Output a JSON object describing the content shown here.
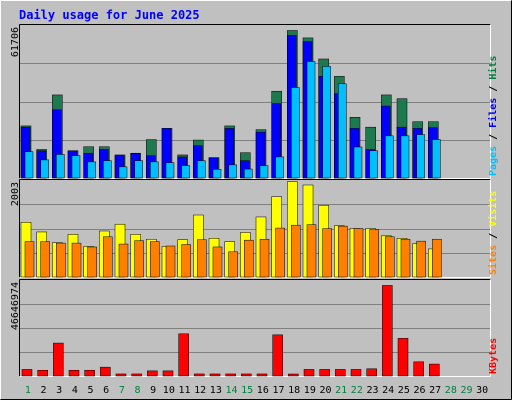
{
  "chart_data": {
    "type": "bar",
    "title": "Daily usage for June 2025",
    "categories": [
      "1",
      "2",
      "3",
      "4",
      "5",
      "6",
      "7",
      "8",
      "9",
      "10",
      "11",
      "12",
      "13",
      "14",
      "15",
      "16",
      "17",
      "18",
      "19",
      "20",
      "21",
      "22",
      "23",
      "24",
      "25",
      "26",
      "27",
      "28",
      "29",
      "30"
    ],
    "weekend_days": [
      "1",
      "7",
      "8",
      "14",
      "15",
      "21",
      "22",
      "28",
      "29"
    ],
    "panels": [
      {
        "name": "hits-files-pages",
        "ymax_label": "61706",
        "ylim": [
          0,
          61706
        ],
        "axis_labels": [
          {
            "text": "Pages",
            "color": "#00c0ff"
          },
          {
            "text": "Files",
            "color": "#0000ff"
          },
          {
            "text": "Hits",
            "color": "#008040"
          }
        ],
        "series": [
          {
            "name": "Hits",
            "color": "#1e7a4e",
            "values": [
              21000,
              11500,
              33500,
              11000,
              12600,
              12600,
              9300,
              10000,
              15500,
              20000,
              9300,
              15300,
              8200,
              21000,
              10200,
              19500,
              35000,
              59500,
              56500,
              48000,
              41000,
              24500,
              20500,
              33500,
              32000,
              22700,
              22700,
              0,
              0,
              0
            ]
          },
          {
            "name": "Files",
            "color": "#0000ff",
            "values": [
              20500,
              11000,
              27500,
              11000,
              10000,
              11500,
              9000,
              9800,
              9000,
              20000,
              8500,
              13000,
              8200,
              20000,
              7000,
              18500,
              30000,
              57500,
              55000,
              41000,
              34000,
              20000,
              11500,
              29000,
              20500,
              20000,
              20300,
              0,
              0,
              0
            ]
          },
          {
            "name": "Pages",
            "color": "#00bfff",
            "values": [
              10600,
              7300,
              9500,
              9000,
              6500,
              7000,
              4500,
              7000,
              6500,
              6200,
              5000,
              7000,
              3500,
              5300,
              3600,
              5000,
              8500,
              36500,
              47000,
              45000,
              38000,
              12500,
              11000,
              17000,
              17000,
              17500,
              15500,
              0,
              0,
              0
            ]
          }
        ]
      },
      {
        "name": "visits-sites",
        "ymax_label": "2003",
        "ylim": [
          0,
          2003
        ],
        "axis_labels": [
          {
            "text": "Sites",
            "color": "#ff8000"
          },
          {
            "text": "Visits",
            "color": "#ffff00"
          }
        ],
        "series": [
          {
            "name": "Visits",
            "color": "#ffff00",
            "values": [
              1130,
              930,
              710,
              880,
              630,
              950,
              1090,
              880,
              780,
              630,
              770,
              1280,
              800,
              730,
              920,
              1240,
              1660,
              1970,
              1900,
              1480,
              1060,
              1000,
              1000,
              850,
              800,
              690,
              580,
              0,
              0,
              0
            ]
          },
          {
            "name": "Sites",
            "color": "#ff8000",
            "values": [
              730,
              730,
              700,
              700,
              620,
              830,
              680,
              750,
              730,
              640,
              670,
              770,
              620,
              520,
              760,
              780,
              1010,
              1070,
              1080,
              1000,
              1050,
              1000,
              980,
              830,
              780,
              740,
              780,
              0,
              0,
              0
            ]
          }
        ]
      },
      {
        "name": "kbytes",
        "ymax_label": "46646974",
        "ylim": [
          0,
          46646974
        ],
        "axis_labels": [
          {
            "text": "KBytes",
            "color": "#ff0000"
          }
        ],
        "series": [
          {
            "name": "KBytes",
            "color": "#ff0000",
            "values": [
              3200000,
              2800000,
              16000000,
              2800000,
              2800000,
              4300000,
              1000000,
              1000000,
              2500000,
              2500000,
              20500000,
              1000000,
              1000000,
              1000000,
              1000000,
              1000000,
              20000000,
              400000,
              3200000,
              3200000,
              3200000,
              3200000,
              3500000,
              44000000,
              18300000,
              6900000,
              5800000,
              0,
              0,
              0
            ]
          }
        ]
      }
    ]
  }
}
